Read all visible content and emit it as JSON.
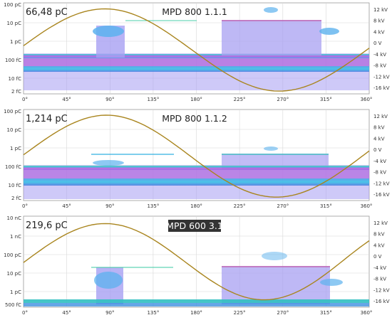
{
  "charts": [
    {
      "value_text": "66,48 pC",
      "title": "MPD 800 1.1.1",
      "title_highlighted": false,
      "left_ticks": [
        "100 pC",
        "10 pC",
        "1 pC",
        "100 fC",
        "10 fC",
        "2 fC"
      ],
      "right_ticks": [
        "12 kV",
        "8 kV",
        "4 kV",
        "0 V",
        "-4 kV",
        "-8 kV",
        "-12 kV",
        "-16 kV"
      ],
      "x_ticks": [
        "0°",
        "45°",
        "90°",
        "135°",
        "180°",
        "225°",
        "270°",
        "315°",
        "360°"
      ]
    },
    {
      "value_text": "1,214 pC",
      "title": "MPD 800 1.1.2",
      "title_highlighted": false,
      "left_ticks": [
        "100 pC",
        "10 pC",
        "1 pC",
        "100 fC",
        "10 fC",
        "2 fC"
      ],
      "right_ticks": [
        "12 kV",
        "8 kV",
        "4 kV",
        "0 V",
        "-4 kV",
        "-8 kV",
        "-12 kV",
        "-16 kV"
      ],
      "x_ticks": [
        "0°",
        "45°",
        "90°",
        "135°",
        "180°",
        "225°",
        "270°",
        "315°",
        "360°"
      ]
    },
    {
      "value_text": "219,6 pC",
      "title": "MPD 600 3.1",
      "title_highlighted": true,
      "left_ticks": [
        "10 nC",
        "1 nC",
        "100 pC",
        "10 pC",
        "1 pC",
        "500 fC"
      ],
      "right_ticks": [
        "12 kV",
        "8 kV",
        "4 kV",
        "0 V",
        "-4 kV",
        "-8 kV",
        "-12 kV",
        "-16 kV"
      ],
      "x_ticks": [
        "0°",
        "45°",
        "90°",
        "135°",
        "180°",
        "225°",
        "270°",
        "315°",
        "360°"
      ]
    }
  ],
  "colors": {
    "sine": "#a9851e",
    "highlight_bg": "#333333",
    "band_base": "#9b90f0"
  }
}
